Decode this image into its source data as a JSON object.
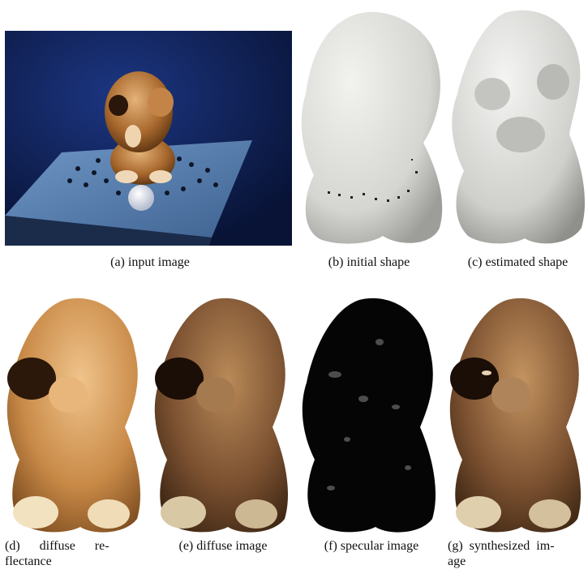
{
  "figure": {
    "panels": [
      {
        "id": "a",
        "caption": "(a)  input image"
      },
      {
        "id": "b",
        "caption": "(b)  initial shape"
      },
      {
        "id": "c",
        "caption": "(c)  estimated shape"
      },
      {
        "id": "d",
        "caption": "(d)      diffuse      re-\nflectance"
      },
      {
        "id": "e",
        "caption": "(e)  diffuse image"
      },
      {
        "id": "f",
        "caption": "(f)  specular image"
      },
      {
        "id": "g",
        "caption": "(g)  synthesized  im-\nage"
      }
    ]
  },
  "colors": {
    "backdrop_blue": "#0d1f5c",
    "board_blue": "#5d86b8",
    "mesh_gray": "#d9d9d6",
    "fur_light": "#d9a56b",
    "fur_dark": "#4a2d14",
    "specular_bg": "#050505"
  }
}
